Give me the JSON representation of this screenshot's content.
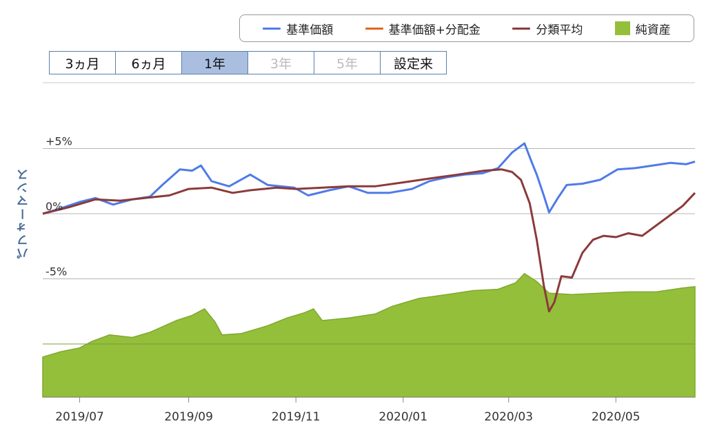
{
  "legend": {
    "items": [
      {
        "label": "基準価額",
        "color": "#4f7be8",
        "kind": "line"
      },
      {
        "label": "基準価額+分配金",
        "color": "#e0661f",
        "kind": "line"
      },
      {
        "label": "分類平均",
        "color": "#8b3a3a",
        "kind": "line"
      },
      {
        "label": "純資産",
        "color": "#94bf3b",
        "kind": "area"
      }
    ]
  },
  "range_buttons": [
    {
      "label": "3ヵ月",
      "state": "normal"
    },
    {
      "label": "6ヵ月",
      "state": "normal"
    },
    {
      "label": "1年",
      "state": "active"
    },
    {
      "label": "3年",
      "state": "disabled"
    },
    {
      "label": "5年",
      "state": "disabled"
    },
    {
      "label": "設定来",
      "state": "normal"
    }
  ],
  "chart_data": {
    "type": "line",
    "ylabel": "パフォーマンス",
    "ylim": [
      -10,
      7
    ],
    "yticks": [
      {
        "value": 5,
        "label": "+5%"
      },
      {
        "value": 0,
        "label": "0%"
      },
      {
        "value": -5,
        "label": "-5%"
      },
      {
        "value": -10,
        "label": ""
      }
    ],
    "xlim": [
      "2019-06-10",
      "2020-06-15"
    ],
    "xticks": [
      {
        "date": "2019-07-01",
        "label": "2019/07"
      },
      {
        "date": "2019-09-01",
        "label": "2019/09"
      },
      {
        "date": "2019-11-01",
        "label": "2019/11"
      },
      {
        "date": "2020-01-01",
        "label": "2020/01"
      },
      {
        "date": "2020-03-01",
        "label": "2020/03"
      },
      {
        "date": "2020-05-01",
        "label": "2020/05"
      }
    ],
    "grid": true,
    "legend_position": "top-right",
    "series": [
      {
        "name": "基準価額",
        "color": "#4f7be8",
        "points": [
          [
            "2019-06-10",
            0.0
          ],
          [
            "2019-06-20",
            0.4
          ],
          [
            "2019-07-01",
            0.9
          ],
          [
            "2019-07-10",
            1.2
          ],
          [
            "2019-07-20",
            0.7
          ],
          [
            "2019-07-31",
            1.1
          ],
          [
            "2019-08-10",
            1.3
          ],
          [
            "2019-08-17",
            2.2
          ],
          [
            "2019-08-27",
            3.4
          ],
          [
            "2019-09-03",
            3.3
          ],
          [
            "2019-09-08",
            3.7
          ],
          [
            "2019-09-14",
            2.5
          ],
          [
            "2019-09-24",
            2.1
          ],
          [
            "2019-10-06",
            3.0
          ],
          [
            "2019-10-16",
            2.2
          ],
          [
            "2019-10-31",
            2.0
          ],
          [
            "2019-11-08",
            1.4
          ],
          [
            "2019-11-20",
            1.8
          ],
          [
            "2019-12-01",
            2.1
          ],
          [
            "2019-12-12",
            1.6
          ],
          [
            "2019-12-24",
            1.6
          ],
          [
            "2020-01-06",
            1.9
          ],
          [
            "2020-01-16",
            2.5
          ],
          [
            "2020-01-26",
            2.8
          ],
          [
            "2020-02-05",
            3.0
          ],
          [
            "2020-02-15",
            3.1
          ],
          [
            "2020-02-24",
            3.5
          ],
          [
            "2020-03-03",
            4.7
          ],
          [
            "2020-03-10",
            5.4
          ],
          [
            "2020-03-14",
            4.0
          ],
          [
            "2020-03-17",
            3.0
          ],
          [
            "2020-03-21",
            1.4
          ],
          [
            "2020-03-24",
            0.1
          ],
          [
            "2020-03-29",
            1.2
          ],
          [
            "2020-04-03",
            2.2
          ],
          [
            "2020-04-12",
            2.3
          ],
          [
            "2020-04-22",
            2.6
          ],
          [
            "2020-05-02",
            3.4
          ],
          [
            "2020-05-12",
            3.5
          ],
          [
            "2020-05-22",
            3.7
          ],
          [
            "2020-06-01",
            3.9
          ],
          [
            "2020-06-10",
            3.8
          ],
          [
            "2020-06-15",
            4.0
          ]
        ]
      },
      {
        "name": "分類平均",
        "color": "#8b3a3a",
        "points": [
          [
            "2019-06-10",
            0.0
          ],
          [
            "2019-06-25",
            0.5
          ],
          [
            "2019-07-10",
            1.1
          ],
          [
            "2019-07-24",
            1.0
          ],
          [
            "2019-08-07",
            1.2
          ],
          [
            "2019-08-21",
            1.4
          ],
          [
            "2019-09-01",
            1.9
          ],
          [
            "2019-09-14",
            2.0
          ],
          [
            "2019-09-26",
            1.6
          ],
          [
            "2019-10-06",
            1.8
          ],
          [
            "2019-10-21",
            2.0
          ],
          [
            "2019-11-01",
            1.9
          ],
          [
            "2019-11-16",
            2.0
          ],
          [
            "2019-12-01",
            2.1
          ],
          [
            "2019-12-16",
            2.1
          ],
          [
            "2020-01-01",
            2.4
          ],
          [
            "2020-01-16",
            2.7
          ],
          [
            "2020-02-01",
            3.0
          ],
          [
            "2020-02-16",
            3.3
          ],
          [
            "2020-02-26",
            3.4
          ],
          [
            "2020-03-03",
            3.2
          ],
          [
            "2020-03-08",
            2.6
          ],
          [
            "2020-03-13",
            0.8
          ],
          [
            "2020-03-17",
            -2.0
          ],
          [
            "2020-03-21",
            -5.5
          ],
          [
            "2020-03-24",
            -7.5
          ],
          [
            "2020-03-27",
            -6.8
          ],
          [
            "2020-03-31",
            -4.8
          ],
          [
            "2020-04-06",
            -4.9
          ],
          [
            "2020-04-12",
            -3.0
          ],
          [
            "2020-04-18",
            -2.0
          ],
          [
            "2020-04-24",
            -1.7
          ],
          [
            "2020-05-01",
            -1.8
          ],
          [
            "2020-05-08",
            -1.5
          ],
          [
            "2020-05-16",
            -1.7
          ],
          [
            "2020-05-24",
            -0.9
          ],
          [
            "2020-06-01",
            -0.1
          ],
          [
            "2020-06-08",
            0.6
          ],
          [
            "2020-06-15",
            1.6
          ]
        ]
      }
    ],
    "area_series": {
      "name": "純資産",
      "color": "#94bf3b",
      "baseline": -14,
      "points": [
        [
          "2019-06-10",
          -11.0
        ],
        [
          "2019-06-20",
          -10.6
        ],
        [
          "2019-07-01",
          -10.3
        ],
        [
          "2019-07-08",
          -9.8
        ],
        [
          "2019-07-18",
          -9.3
        ],
        [
          "2019-07-31",
          -9.5
        ],
        [
          "2019-08-10",
          -9.1
        ],
        [
          "2019-08-25",
          -8.2
        ],
        [
          "2019-09-03",
          -7.8
        ],
        [
          "2019-09-10",
          -7.3
        ],
        [
          "2019-09-16",
          -8.3
        ],
        [
          "2019-09-20",
          -9.3
        ],
        [
          "2019-10-01",
          -9.2
        ],
        [
          "2019-10-16",
          -8.6
        ],
        [
          "2019-10-27",
          -8.0
        ],
        [
          "2019-11-06",
          -7.6
        ],
        [
          "2019-11-11",
          -7.3
        ],
        [
          "2019-11-16",
          -8.2
        ],
        [
          "2019-12-01",
          -8.0
        ],
        [
          "2019-12-16",
          -7.7
        ],
        [
          "2019-12-26",
          -7.1
        ],
        [
          "2020-01-10",
          -6.5
        ],
        [
          "2020-01-26",
          -6.2
        ],
        [
          "2020-02-10",
          -5.9
        ],
        [
          "2020-02-24",
          -5.8
        ],
        [
          "2020-03-05",
          -5.3
        ],
        [
          "2020-03-10",
          -4.6
        ],
        [
          "2020-03-17",
          -5.2
        ],
        [
          "2020-03-24",
          -6.1
        ],
        [
          "2020-04-06",
          -6.2
        ],
        [
          "2020-04-22",
          -6.1
        ],
        [
          "2020-05-08",
          -6.0
        ],
        [
          "2020-05-24",
          -6.0
        ],
        [
          "2020-06-08",
          -5.7
        ],
        [
          "2020-06-15",
          -5.6
        ]
      ]
    }
  }
}
